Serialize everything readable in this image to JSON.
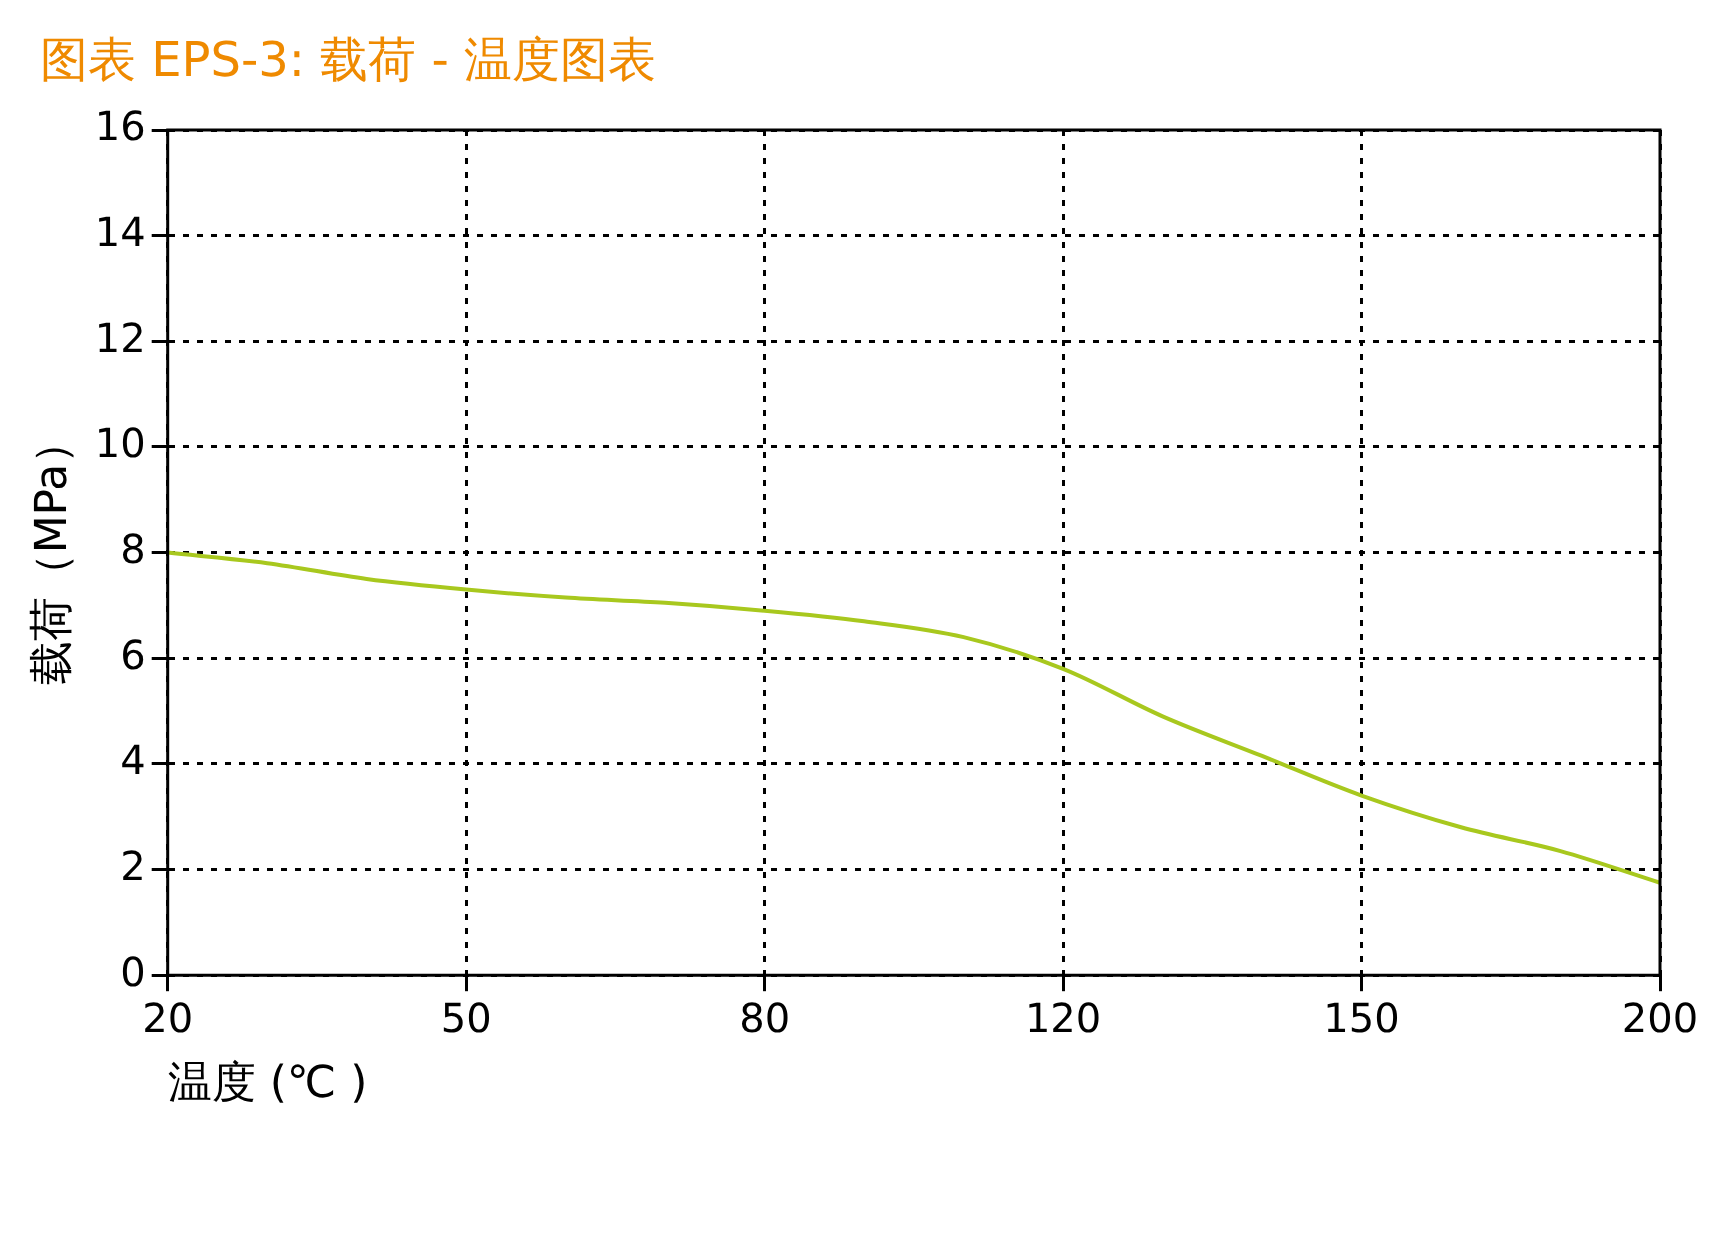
{
  "chart_data": {
    "type": "line",
    "title": "图表 EPS-3: 载荷 - 温度图表",
    "xlabel": "温度 (℃ )",
    "ylabel": "载荷（MPa）",
    "categories": [
      "20",
      null,
      null,
      "50",
      null,
      null,
      "80",
      null,
      null,
      "120",
      null,
      null,
      "150",
      null,
      null,
      "200"
    ],
    "series": [
      {
        "color": "#a8c81e",
        "values": [
          8.0,
          7.8,
          7.5,
          7.3,
          7.15,
          7.05,
          6.9,
          6.7,
          6.4,
          5.8,
          4.9,
          4.15,
          3.4,
          2.8,
          2.35,
          1.75
        ]
      }
    ],
    "ylim": [
      0,
      16
    ],
    "yticks": [
      0,
      2,
      4,
      6,
      8,
      10,
      12,
      14,
      16
    ],
    "grid": true,
    "legend": false,
    "marker": "none",
    "line_style": "solid"
  }
}
